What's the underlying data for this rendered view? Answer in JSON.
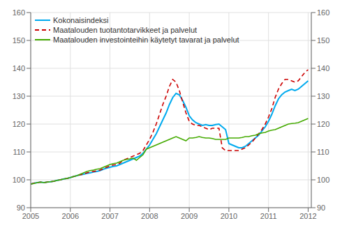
{
  "chart_data": {
    "type": "line",
    "x": [
      2005.0,
      2005.083,
      2005.167,
      2005.25,
      2005.333,
      2005.417,
      2005.5,
      2005.583,
      2005.667,
      2005.75,
      2005.833,
      2005.917,
      2006.0,
      2006.083,
      2006.167,
      2006.25,
      2006.333,
      2006.417,
      2006.5,
      2006.583,
      2006.667,
      2006.75,
      2006.833,
      2006.917,
      2007.0,
      2007.083,
      2007.167,
      2007.25,
      2007.333,
      2007.417,
      2007.5,
      2007.583,
      2007.667,
      2007.75,
      2007.833,
      2007.917,
      2008.0,
      2008.083,
      2008.167,
      2008.25,
      2008.333,
      2008.417,
      2008.5,
      2008.583,
      2008.667,
      2008.75,
      2008.833,
      2008.917,
      2009.0,
      2009.083,
      2009.167,
      2009.25,
      2009.333,
      2009.417,
      2009.5,
      2009.583,
      2009.667,
      2009.75,
      2009.833,
      2009.917,
      2010.0,
      2010.083,
      2010.167,
      2010.25,
      2010.333,
      2010.417,
      2010.5,
      2010.583,
      2010.667,
      2010.75,
      2010.833,
      2010.917,
      2011.0,
      2011.083,
      2011.167,
      2011.25,
      2011.333,
      2011.417,
      2011.5,
      2011.583,
      2011.667,
      2011.75,
      2011.833,
      2011.917,
      2012.0
    ],
    "series": [
      {
        "name": "Kokonaisindeksi",
        "color": "#00aaee",
        "line_style": "solid",
        "values": [
          98.5,
          98.8,
          99.0,
          99.2,
          99.0,
          99.2,
          99.3,
          99.5,
          99.8,
          100.0,
          100.3,
          100.5,
          100.8,
          101.2,
          101.5,
          101.8,
          102.0,
          102.3,
          102.5,
          102.8,
          103.0,
          103.3,
          103.8,
          104.2,
          104.5,
          104.8,
          105.0,
          105.5,
          106.0,
          106.5,
          107.0,
          107.5,
          108.0,
          108.5,
          109.5,
          111.0,
          112.5,
          114.5,
          116.5,
          119.0,
          121.5,
          124.0,
          127.0,
          129.5,
          131.0,
          130.5,
          128.5,
          126.0,
          123.0,
          121.5,
          120.5,
          120.0,
          119.5,
          119.8,
          119.5,
          119.5,
          119.8,
          120.0,
          119.0,
          118.0,
          113.0,
          112.5,
          112.0,
          111.5,
          111.5,
          112.0,
          113.0,
          114.0,
          115.0,
          116.0,
          117.5,
          119.0,
          121.0,
          123.5,
          126.5,
          129.0,
          130.5,
          131.5,
          132.0,
          132.5,
          132.0,
          132.5,
          133.5,
          134.5,
          135.5
        ]
      },
      {
        "name": "Maatalouden tuotantotarvikkeet ja palvelut",
        "color": "#cc0000",
        "line_style": "dashed",
        "values": [
          98.5,
          98.8,
          99.0,
          99.2,
          99.0,
          99.2,
          99.3,
          99.5,
          99.8,
          100.0,
          100.3,
          100.5,
          100.8,
          101.2,
          101.5,
          101.8,
          102.0,
          102.5,
          102.8,
          103.0,
          103.2,
          103.5,
          104.0,
          104.5,
          105.0,
          105.3,
          105.5,
          106.0,
          107.0,
          107.5,
          108.0,
          108.5,
          109.0,
          109.5,
          110.5,
          112.5,
          114.5,
          117.0,
          120.0,
          123.5,
          127.0,
          130.0,
          133.5,
          136.0,
          135.0,
          132.0,
          128.0,
          124.0,
          121.0,
          120.0,
          119.5,
          119.5,
          119.0,
          118.5,
          118.0,
          118.5,
          118.5,
          118.5,
          111.5,
          110.5,
          110.5,
          110.5,
          110.5,
          110.5,
          111.0,
          111.5,
          112.5,
          113.5,
          115.0,
          116.5,
          118.0,
          120.0,
          122.5,
          125.5,
          129.5,
          132.5,
          134.5,
          136.0,
          136.0,
          135.5,
          135.0,
          135.5,
          137.0,
          138.5,
          139.5
        ]
      },
      {
        "name": "Maatalouden investointeihin käytetyt tavarat ja palvelut",
        "color": "#44aa00",
        "line_style": "solid",
        "values": [
          98.5,
          98.7,
          99.0,
          99.2,
          99.0,
          99.2,
          99.3,
          99.5,
          99.8,
          100.0,
          100.3,
          100.5,
          100.8,
          101.2,
          101.5,
          102.0,
          102.5,
          103.0,
          103.3,
          103.5,
          103.8,
          104.0,
          104.5,
          105.0,
          105.5,
          105.8,
          106.0,
          106.5,
          107.0,
          107.3,
          107.5,
          107.8,
          107.0,
          108.0,
          109.0,
          111.0,
          111.5,
          112.0,
          112.5,
          113.0,
          113.5,
          114.0,
          114.5,
          115.0,
          115.5,
          115.0,
          114.5,
          114.0,
          115.0,
          115.0,
          115.2,
          115.5,
          115.2,
          115.0,
          115.0,
          114.8,
          114.5,
          114.5,
          114.5,
          114.5,
          115.0,
          115.0,
          115.0,
          115.0,
          115.2,
          115.5,
          115.5,
          115.8,
          116.0,
          116.5,
          116.8,
          117.0,
          117.5,
          117.8,
          118.0,
          118.5,
          119.0,
          119.5,
          120.0,
          120.2,
          120.3,
          120.5,
          121.0,
          121.5,
          122.0
        ]
      }
    ],
    "xlim": [
      2005.0,
      2012.08
    ],
    "xticks": [
      2005,
      2006,
      2007,
      2008,
      2009,
      2010,
      2011,
      2012
    ],
    "ylim": [
      90,
      160
    ],
    "yticks": [
      90,
      100,
      110,
      120,
      130,
      140,
      150,
      160
    ],
    "y2lim": [
      90,
      160
    ],
    "y2ticks": [
      90,
      100,
      110,
      120,
      130,
      140,
      150,
      160
    ],
    "grid": true,
    "legend": "upper left"
  }
}
